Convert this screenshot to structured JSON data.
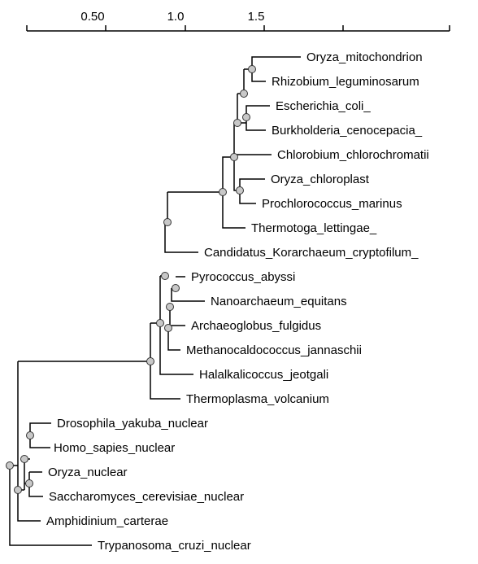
{
  "scale_bar": {
    "ticks": [
      {
        "label": "0.50",
        "value": 0.5
      },
      {
        "label": "1.0",
        "value": 1.0
      },
      {
        "label": "1.5",
        "value": 1.5
      }
    ]
  },
  "leaves": [
    "Oryza_mitochondrion",
    "Rhizobium_leguminosarum",
    "Escherichia_coli_",
    "Burkholderia_cenocepacia_",
    "Chlorobium_chlorochromatii",
    "Oryza_chloroplast",
    "Prochlorococcus_marinus",
    "Thermotoga_lettingae_",
    "Candidatus_Korarchaeum_cryptofilum_",
    "Pyrococcus_abyssi",
    "Nanoarchaeum_equitans",
    "Archaeoglobus_fulgidus",
    "Methanocaldococcus_jannaschii",
    "Halalkalicoccus_jeotgali",
    "Thermoplasma_volcanium",
    "Drosophila_yakuba_nuclear",
    "Homo_sapies_nuclear",
    "Oryza_nuclear",
    "Saccharomyces_cerevisiae_nuclear",
    "Amphidinium_carterae",
    "Trypanosoma_cruzi_nuclear"
  ],
  "colors": {
    "branch": "#000000",
    "node_fill": "#c8c8c8",
    "node_stroke": "#333333"
  }
}
